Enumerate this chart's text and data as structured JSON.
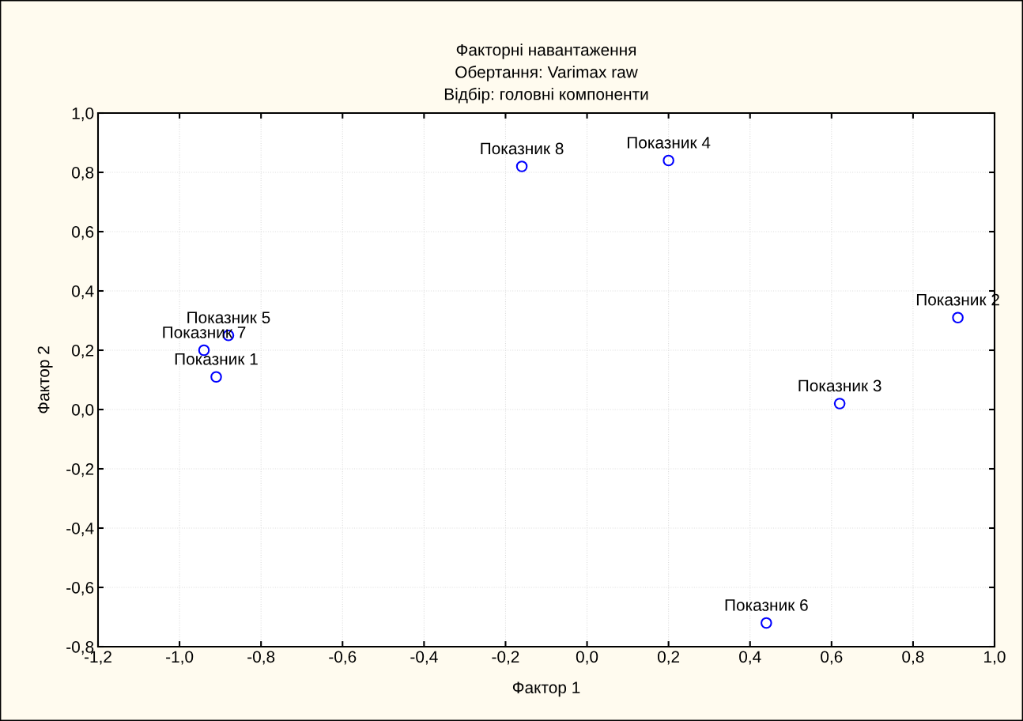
{
  "chart_data": {
    "type": "scatter",
    "title": "Факторні навантаження\nОбертання: Varimax raw\nВідбір: головні компоненти",
    "xlabel": "Фактор 1",
    "ylabel": "Фактор 2",
    "x": [
      -0.91,
      0.91,
      0.62,
      0.2,
      -0.88,
      0.44,
      -0.94,
      -0.16
    ],
    "series": [
      {
        "color": "#0000ff",
        "values": [
          0.11,
          0.31,
          0.02,
          0.84,
          0.25,
          -0.72,
          0.2,
          0.82
        ]
      }
    ],
    "marker": "circle",
    "grid": true,
    "xlim": [
      -1.2,
      1.0
    ],
    "ylim": [
      -0.8,
      1.0
    ],
    "xticks": [
      {
        "value": -1.2,
        "label": "-1,2"
      },
      {
        "value": -1.0,
        "label": "-1,0"
      },
      {
        "value": -0.8,
        "label": "-0,8"
      },
      {
        "value": -0.6,
        "label": "-0,6"
      },
      {
        "value": -0.4,
        "label": "-0,4"
      },
      {
        "value": -0.2,
        "label": "-0,2"
      },
      {
        "value": 0.0,
        "label": "0,0"
      },
      {
        "value": 0.2,
        "label": "0,2"
      },
      {
        "value": 0.4,
        "label": "0,4"
      },
      {
        "value": 0.6,
        "label": "0,6"
      },
      {
        "value": 0.8,
        "label": "0,8"
      },
      {
        "value": 1.0,
        "label": "1,0"
      }
    ],
    "yticks": [
      {
        "value": -0.8,
        "label": "-0,8"
      },
      {
        "value": -0.6,
        "label": "-0,6"
      },
      {
        "value": -0.4,
        "label": "-0,4"
      },
      {
        "value": -0.2,
        "label": "-0,2"
      },
      {
        "value": 0.0,
        "label": "0,0"
      },
      {
        "value": 0.2,
        "label": "0,2"
      },
      {
        "value": 0.4,
        "label": "0,4"
      },
      {
        "value": 0.6,
        "label": "0,6"
      },
      {
        "value": 0.8,
        "label": "0,8"
      },
      {
        "value": 1.0,
        "label": "1,0"
      }
    ],
    "annotations": [
      {
        "text": "Показник 1",
        "x": -0.91,
        "y": 0.11
      },
      {
        "text": "Показник 2",
        "x": 0.91,
        "y": 0.31
      },
      {
        "text": "Показник 3",
        "x": 0.62,
        "y": 0.02
      },
      {
        "text": "Показник 4",
        "x": 0.2,
        "y": 0.84
      },
      {
        "text": "Показник 5",
        "x": -0.88,
        "y": 0.25
      },
      {
        "text": "Показник 6",
        "x": 0.44,
        "y": -0.72
      },
      {
        "text": "Показник 7",
        "x": -0.94,
        "y": 0.2
      },
      {
        "text": "Показник 8",
        "x": -0.16,
        "y": 0.82
      }
    ]
  }
}
